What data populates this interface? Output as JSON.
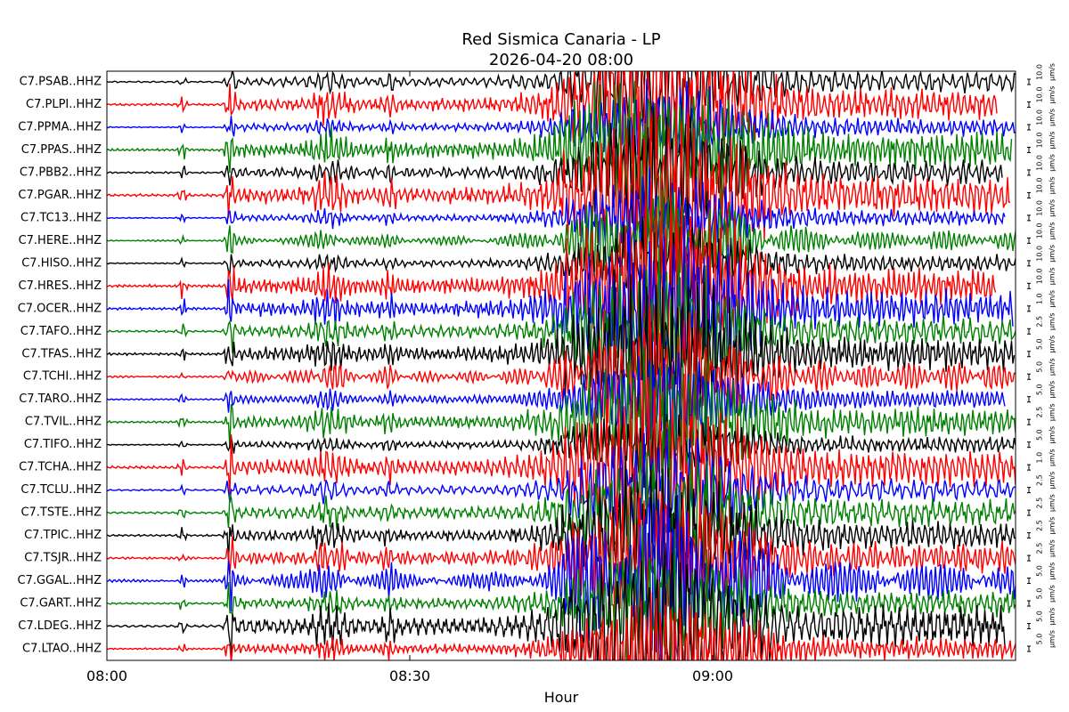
{
  "chart_data": {
    "type": "seismogram",
    "title": "Red Sismica Canaria - LP",
    "subtitle": "2026-04-20 08:00",
    "x_label": "Hour",
    "xlim": [
      0,
      90
    ],
    "xticks": [
      {
        "value": 0,
        "label": "08:00"
      },
      {
        "value": 30,
        "label": "08:30"
      },
      {
        "value": 60,
        "label": "09:00"
      }
    ],
    "stations": [
      {
        "name": "C7.PSAB..HHZ",
        "color": "#000000",
        "scale": "10.0",
        "unit": "µm/s"
      },
      {
        "name": "C7.PLPI..HHZ",
        "color": "#ff0000",
        "scale": "10.0",
        "unit": "µm/s"
      },
      {
        "name": "C7.PPMA..HHZ",
        "color": "#0000ff",
        "scale": "10.0",
        "unit": "µm/s"
      },
      {
        "name": "C7.PPAS..HHZ",
        "color": "#008000",
        "scale": "10.0",
        "unit": "µm/s"
      },
      {
        "name": "C7.PBB2..HHZ",
        "color": "#000000",
        "scale": "10.0",
        "unit": "µm/s"
      },
      {
        "name": "C7.PGAR..HHZ",
        "color": "#ff0000",
        "scale": "10.0",
        "unit": "µm/s"
      },
      {
        "name": "C7.TC13..HHZ",
        "color": "#0000ff",
        "scale": "10.0",
        "unit": "µm/s"
      },
      {
        "name": "C7.HERE..HHZ",
        "color": "#008000",
        "scale": "10.0",
        "unit": "µm/s"
      },
      {
        "name": "C7.HISO..HHZ",
        "color": "#000000",
        "scale": "10.0",
        "unit": "µm/s"
      },
      {
        "name": "C7.HRES..HHZ",
        "color": "#ff0000",
        "scale": "10.0",
        "unit": "µm/s"
      },
      {
        "name": "C7.OCER..HHZ",
        "color": "#0000ff",
        "scale": "1.0",
        "unit": "µm/s"
      },
      {
        "name": "C7.TAFO..HHZ",
        "color": "#008000",
        "scale": "2.5",
        "unit": "µm/s"
      },
      {
        "name": "C7.TFAS..HHZ",
        "color": "#000000",
        "scale": "5.0",
        "unit": "µm/s"
      },
      {
        "name": "C7.TCHI..HHZ",
        "color": "#ff0000",
        "scale": "5.0",
        "unit": "µm/s"
      },
      {
        "name": "C7.TARO..HHZ",
        "color": "#0000ff",
        "scale": "5.0",
        "unit": "µm/s"
      },
      {
        "name": "C7.TVIL..HHZ",
        "color": "#008000",
        "scale": "2.5",
        "unit": "µm/s"
      },
      {
        "name": "C7.TIFO..HHZ",
        "color": "#000000",
        "scale": "5.0",
        "unit": "µm/s"
      },
      {
        "name": "C7.TCHA..HHZ",
        "color": "#ff0000",
        "scale": "1.0",
        "unit": "µm/s"
      },
      {
        "name": "C7.TCLU..HHZ",
        "color": "#0000ff",
        "scale": "2.5",
        "unit": "µm/s"
      },
      {
        "name": "C7.TSTE..HHZ",
        "color": "#008000",
        "scale": "2.5",
        "unit": "µm/s"
      },
      {
        "name": "C7.TPIC..HHZ",
        "color": "#000000",
        "scale": "2.5",
        "unit": "µm/s"
      },
      {
        "name": "C7.TSJR..HHZ",
        "color": "#ff0000",
        "scale": "2.5",
        "unit": "µm/s"
      },
      {
        "name": "C7.GGAL..HHZ",
        "color": "#0000ff",
        "scale": "5.0",
        "unit": "µm/s"
      },
      {
        "name": "C7.GART..HHZ",
        "color": "#008000",
        "scale": "5.0",
        "unit": "µm/s"
      },
      {
        "name": "C7.LDEG..HHZ",
        "color": "#000000",
        "scale": "5.0",
        "unit": "µm/s"
      },
      {
        "name": "C7.LTAO..HHZ",
        "color": "#ff0000",
        "scale": "5.0",
        "unit": "µm/s"
      }
    ]
  }
}
